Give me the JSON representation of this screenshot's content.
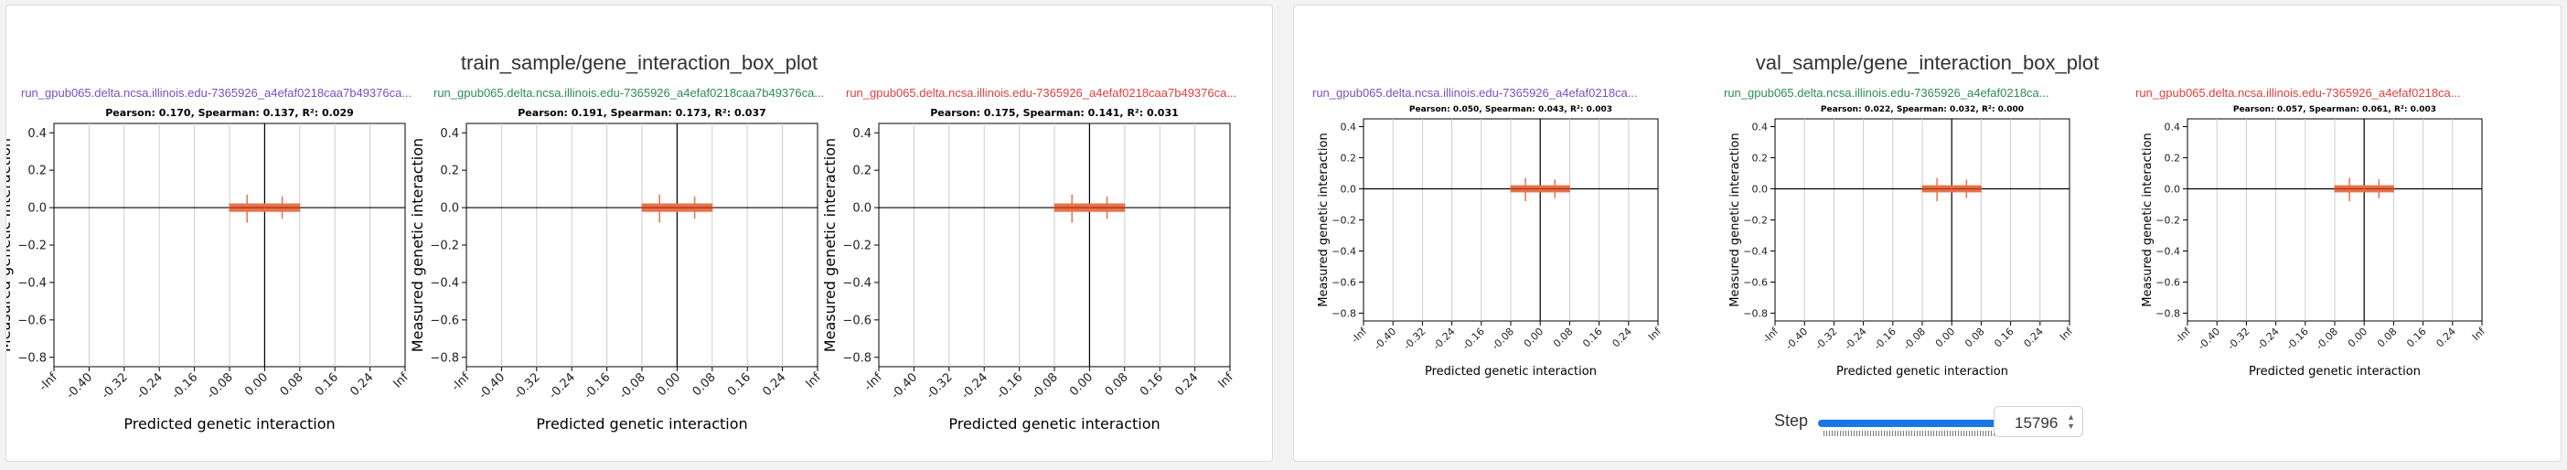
{
  "panels": [
    {
      "title": "train_sample/gene_interaction_box_plot",
      "size": "large",
      "subplots": [
        {
          "run": "run_gpub065.delta.ncsa.illinois.edu-7365926_a4efaf0218caa7b49376ca...",
          "run_color": "#7a4fc2",
          "stats": "Pearson: 0.170, Spearman: 0.137, R²: 0.029"
        },
        {
          "run": "run_gpub065.delta.ncsa.illinois.edu-7365926_a4efaf0218caa7b49376ca...",
          "run_color": "#2e8b57",
          "stats": "Pearson: 0.191, Spearman: 0.173, R²: 0.037"
        },
        {
          "run": "run_gpub065.delta.ncsa.illinois.edu-7365926_a4efaf0218caa7b49376ca...",
          "run_color": "#e0413a",
          "stats": "Pearson: 0.175, Spearman: 0.141, R²: 0.031"
        }
      ]
    },
    {
      "title": "val_sample/gene_interaction_box_plot",
      "size": "small",
      "subplots": [
        {
          "run": "run_gpub065.delta.ncsa.illinois.edu-7365926_a4efaf0218ca...",
          "run_color": "#7a4fc2",
          "stats": "Pearson: 0.050, Spearman: 0.043, R²: 0.003"
        },
        {
          "run": "run_gpub065.delta.ncsa.illinois.edu-7365926_a4efaf0218ca...",
          "run_color": "#2e8b57",
          "stats": "Pearson: 0.022, Spearman: 0.032, R²: 0.000"
        },
        {
          "run": "run_gpub065.delta.ncsa.illinois.edu-7365926_a4efaf0218ca...",
          "run_color": "#e0413a",
          "stats": "Pearson: 0.057, Spearman: 0.061, R²: 0.003"
        }
      ]
    }
  ],
  "chart_data": {
    "type": "box",
    "xlabel": "Predicted genetic interaction",
    "ylabel": "Measured genetic interaction",
    "x_tick_labels": [
      "-Inf",
      "-0.40",
      "-0.32",
      "-0.24",
      "-0.16",
      "-0.08",
      "0.00",
      "0.08",
      "0.16",
      "0.24",
      "Inf"
    ],
    "y_ticks": [
      0.4,
      0.2,
      0.0,
      -0.2,
      -0.4,
      -0.6,
      -0.8
    ],
    "y_tick_labels": [
      "0.4",
      "0.2",
      "0.0",
      "−0.2",
      "−0.4",
      "−0.6",
      "−0.8"
    ],
    "ylim_train": [
      -0.85,
      0.45
    ],
    "ylim_val": [
      -0.85,
      0.45
    ],
    "boxes": [
      {
        "bin": "-0.08..0.00",
        "q1": -0.02,
        "median": 0.0,
        "q3": 0.02,
        "whisker_low": -0.08,
        "whisker_high": 0.07
      },
      {
        "bin": "0.00..0.08",
        "q1": -0.02,
        "median": 0.0,
        "q3": 0.02,
        "whisker_low": -0.06,
        "whisker_high": 0.06
      }
    ],
    "box_color": "#e8724a",
    "median_color": "#b03a1a",
    "grid": "vertical"
  },
  "step": {
    "label": "Step",
    "value": "15796",
    "slider_fraction": 1.0
  }
}
